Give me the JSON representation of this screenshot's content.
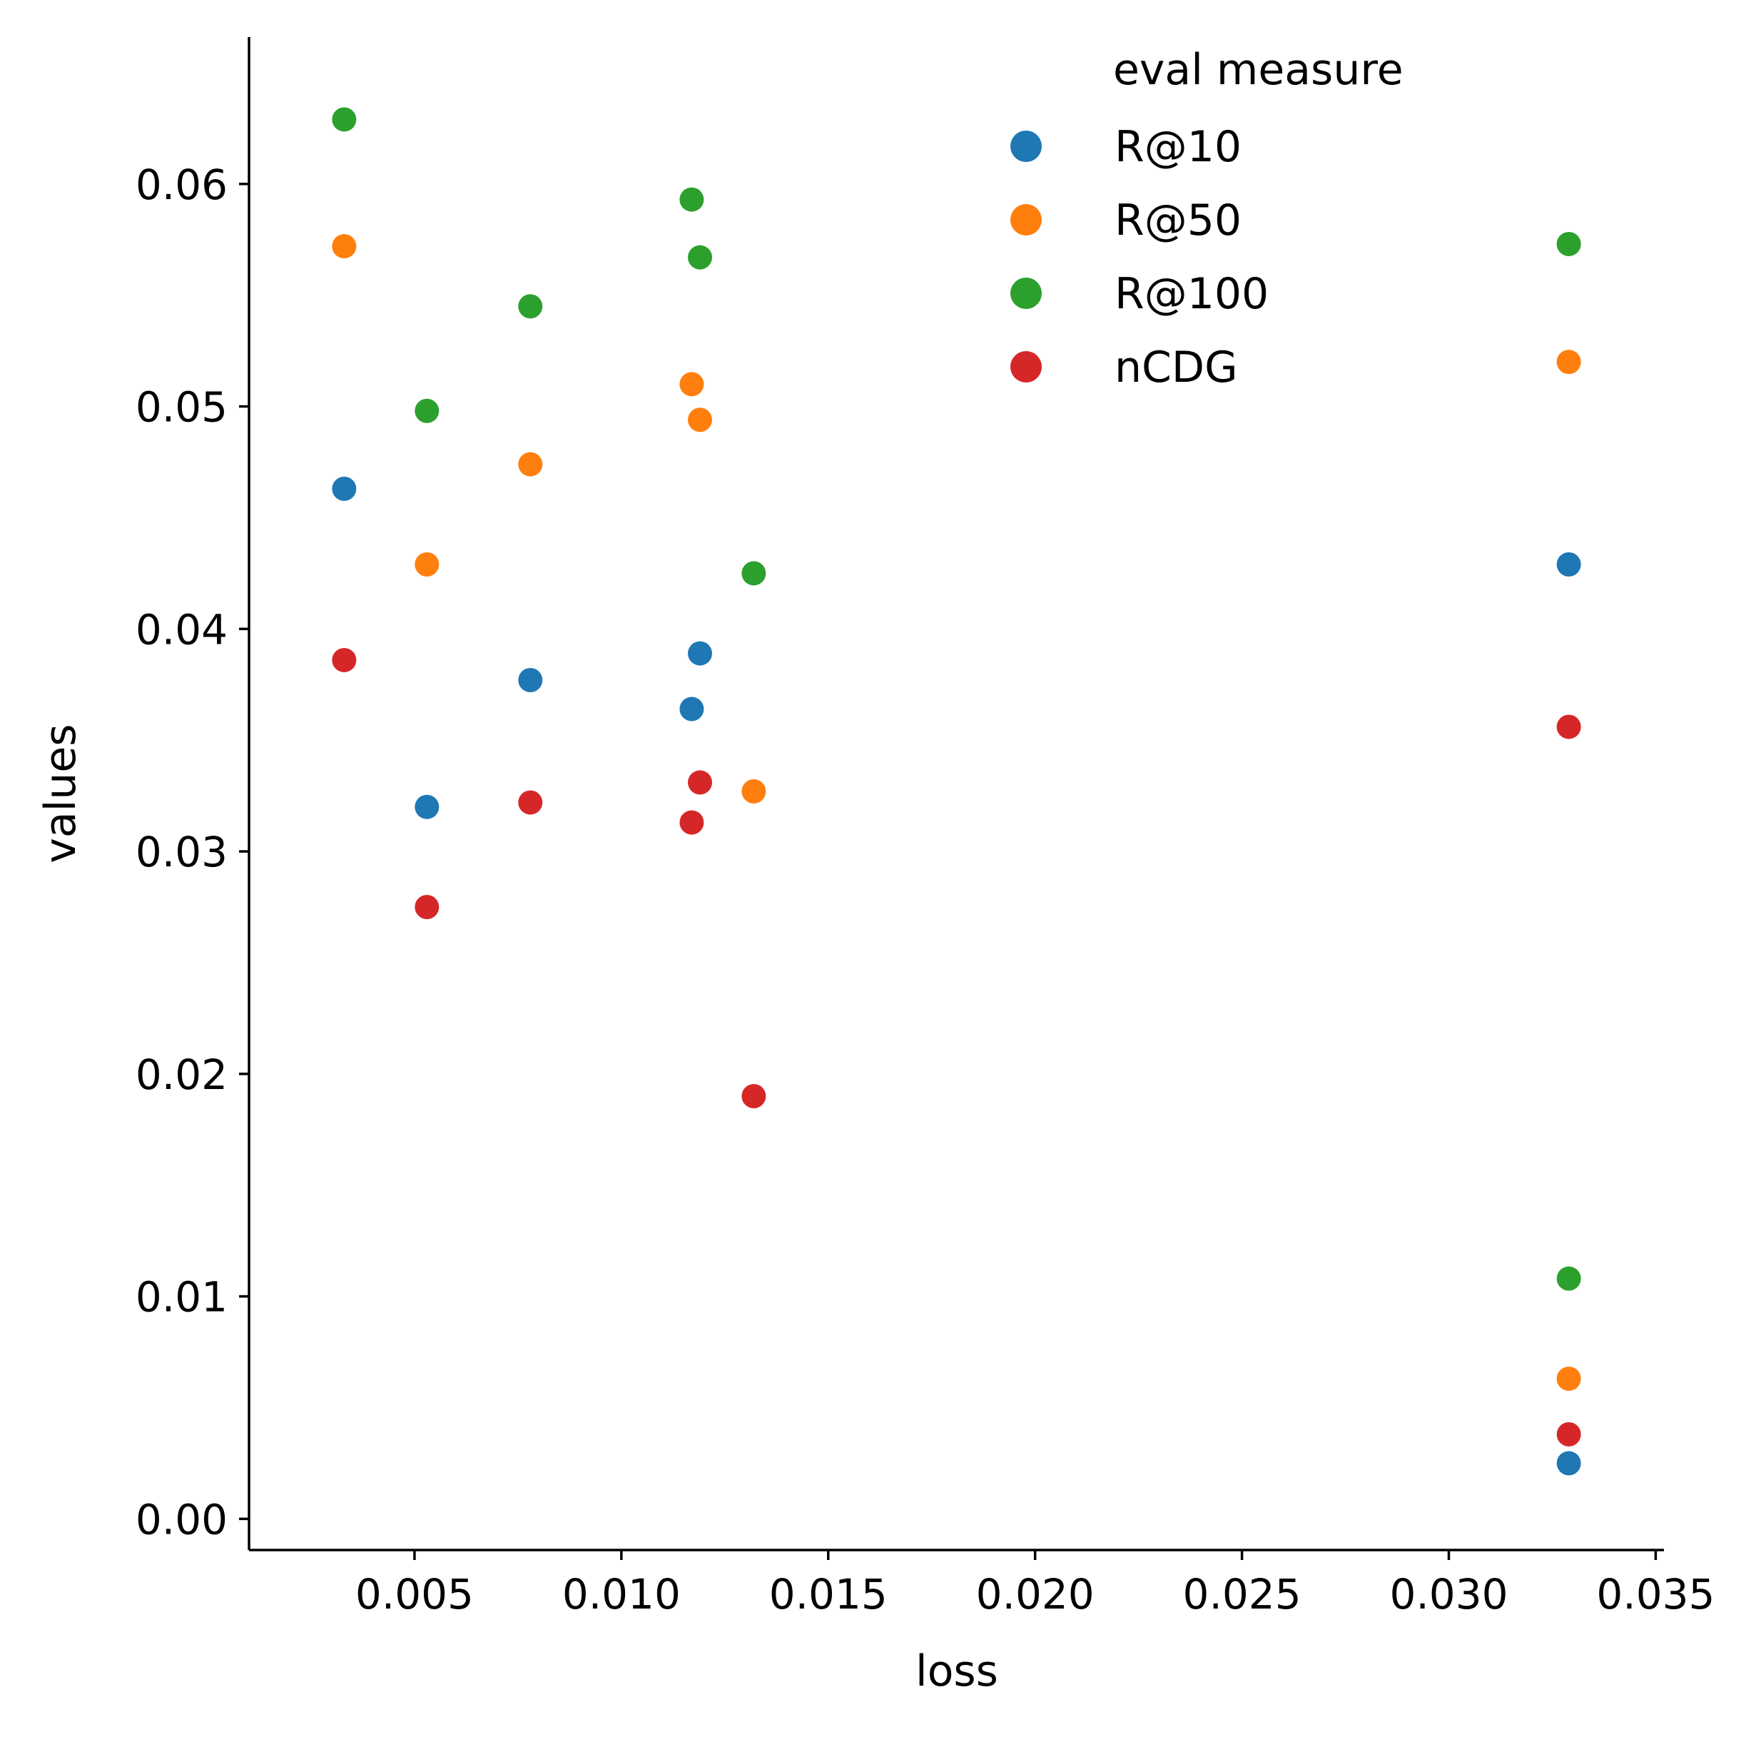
{
  "chart_data": {
    "type": "scatter",
    "title": "",
    "xlabel": "loss",
    "ylabel": "values",
    "xlim": [
      0.001,
      0.0352
    ],
    "ylim": [
      -0.0014,
      0.0666
    ],
    "xticks": [
      0.005,
      0.01,
      0.015,
      0.02,
      0.025,
      0.03,
      0.035
    ],
    "xtick_labels": [
      "0.005",
      "0.010",
      "0.015",
      "0.020",
      "0.025",
      "0.030",
      "0.035"
    ],
    "yticks": [
      0.0,
      0.01,
      0.02,
      0.03,
      0.04,
      0.05,
      0.06
    ],
    "ytick_labels": [
      "0.00",
      "0.01",
      "0.02",
      "0.03",
      "0.04",
      "0.05",
      "0.06"
    ],
    "grid": false,
    "legend": {
      "title": "eval measure",
      "placement": "top-right"
    },
    "series": [
      {
        "name": "R@10",
        "color": "#1f77b4",
        "points": [
          {
            "x": 0.0033,
            "y": 0.0463
          },
          {
            "x": 0.0053,
            "y": 0.032
          },
          {
            "x": 0.0078,
            "y": 0.0377
          },
          {
            "x": 0.0117,
            "y": 0.0364
          },
          {
            "x": 0.0119,
            "y": 0.0389
          },
          {
            "x": 0.0329,
            "y": 0.0429
          },
          {
            "x": 0.0329,
            "y": 0.0025
          }
        ]
      },
      {
        "name": "R@50",
        "color": "#ff7f0e",
        "points": [
          {
            "x": 0.0033,
            "y": 0.0572
          },
          {
            "x": 0.0053,
            "y": 0.0429
          },
          {
            "x": 0.0078,
            "y": 0.0474
          },
          {
            "x": 0.0117,
            "y": 0.051
          },
          {
            "x": 0.0119,
            "y": 0.0494
          },
          {
            "x": 0.0132,
            "y": 0.0327
          },
          {
            "x": 0.0329,
            "y": 0.052
          },
          {
            "x": 0.0329,
            "y": 0.0063
          }
        ]
      },
      {
        "name": "R@100",
        "color": "#2ca02c",
        "points": [
          {
            "x": 0.0033,
            "y": 0.0629
          },
          {
            "x": 0.0053,
            "y": 0.0498
          },
          {
            "x": 0.0078,
            "y": 0.0545
          },
          {
            "x": 0.0117,
            "y": 0.0593
          },
          {
            "x": 0.0119,
            "y": 0.0567
          },
          {
            "x": 0.0132,
            "y": 0.0425
          },
          {
            "x": 0.0329,
            "y": 0.0573
          },
          {
            "x": 0.0329,
            "y": 0.0108
          }
        ]
      },
      {
        "name": "nCDG",
        "color": "#d62728",
        "points": [
          {
            "x": 0.0033,
            "y": 0.0386
          },
          {
            "x": 0.0053,
            "y": 0.0275
          },
          {
            "x": 0.0078,
            "y": 0.0322
          },
          {
            "x": 0.0117,
            "y": 0.0313
          },
          {
            "x": 0.0119,
            "y": 0.0331
          },
          {
            "x": 0.0132,
            "y": 0.019
          },
          {
            "x": 0.0329,
            "y": 0.0356
          },
          {
            "x": 0.0329,
            "y": 0.0038
          }
        ]
      }
    ]
  }
}
